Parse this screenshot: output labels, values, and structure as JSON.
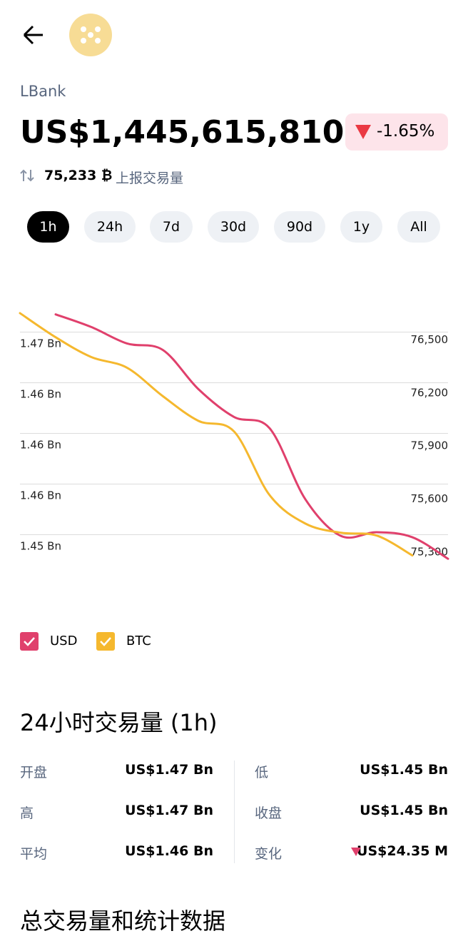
{
  "header": {
    "name": "LBank",
    "price": "US$1,445,615,810",
    "change": "-1.65%",
    "volume": "75,233 ₿",
    "volume_label": "上报交易量"
  },
  "tabs": [
    "1h",
    "24h",
    "7d",
    "30d",
    "90d",
    "1y",
    "All"
  ],
  "chart_data": {
    "type": "line",
    "categories": [
      null,
      null,
      null,
      null,
      null,
      null,
      null,
      null,
      null,
      null,
      null,
      null,
      null
    ],
    "series": [
      {
        "name": "USD",
        "color": "#e0406c",
        "values": [
          null,
          1.4694,
          1.4684,
          1.4671,
          1.4666,
          1.4635,
          1.4613,
          1.4604,
          1.4548,
          1.4519,
          1.4522,
          1.4518,
          1.4501
        ]
      },
      {
        "name": "BTC",
        "color": "#f5b82e",
        "axis": "y2",
        "values": [
          76584,
          76448,
          76336,
          76276,
          76116,
          75976,
          75916,
          75556,
          75396,
          75344,
          75328,
          75216,
          null
        ]
      }
    ],
    "ylim": [
      1.45,
      1.47
    ],
    "yticks": [
      {
        "value": 1.468,
        "label": "1.47 Bn"
      },
      {
        "value": 1.464,
        "label": "1.46 Bn"
      },
      {
        "value": 1.46,
        "label": "1.46 Bn"
      },
      {
        "value": 1.456,
        "label": "1.46 Bn"
      },
      {
        "value": 1.452,
        "label": "1.45 Bn"
      }
    ],
    "y2lim": [
      75190,
      76620
    ],
    "y2ticks": [
      {
        "value": 76500,
        "label": "76,500"
      },
      {
        "value": 76200,
        "label": "76,200"
      },
      {
        "value": 75900,
        "label": "75,900"
      },
      {
        "value": 75600,
        "label": "75,600"
      },
      {
        "value": 75300,
        "label": "75,300"
      }
    ],
    "grid": true
  },
  "stats": {
    "title": "24小时交易量 (1h)",
    "rows": [
      [
        [
          "开盘",
          "US$1.47 Bn"
        ],
        [
          "低",
          "US$1.45 Bn"
        ]
      ],
      [
        [
          "高",
          "US$1.47 Bn"
        ],
        [
          "收盘",
          "US$1.45 Bn"
        ]
      ],
      [
        [
          "平均",
          "US$1.46 Bn"
        ],
        [
          "变化",
          "US$24.35 M"
        ]
      ]
    ]
  },
  "next_section": "总交易量和统计数据"
}
